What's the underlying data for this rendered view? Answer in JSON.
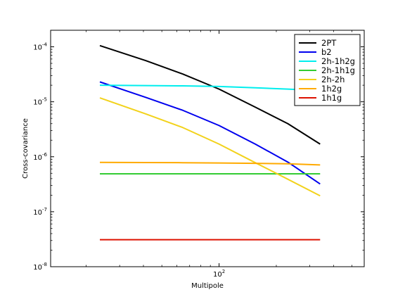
{
  "chart_data": {
    "type": "line",
    "title": "",
    "xlabel": "Multipole",
    "ylabel": "Cross-covariance",
    "xscale": "log",
    "yscale": "log",
    "xlim": [
      13,
      580
    ],
    "ylim": [
      1e-08,
      0.0002
    ],
    "x_ticks": [
      {
        "value": 100,
        "base": "10",
        "exp": "2"
      }
    ],
    "y_ticks": [
      {
        "value": 1e-08,
        "base": "10",
        "exp": "-8"
      },
      {
        "value": 1e-07,
        "base": "10",
        "exp": "-7"
      },
      {
        "value": 1e-06,
        "base": "10",
        "exp": "-6"
      },
      {
        "value": 1e-05,
        "base": "10",
        "exp": "-5"
      },
      {
        "value": 0.0001,
        "base": "10",
        "exp": "-4"
      }
    ],
    "grid": false,
    "legend_position": "top-right",
    "x": [
      23.6,
      41.2,
      64.4,
      100,
      155,
      230,
      340
    ],
    "series": [
      {
        "name": "2PT",
        "color": "#000000",
        "values": [
          0.000105,
          5.6e-05,
          3.2e-05,
          1.7e-05,
          8e-06,
          4e-06,
          1.7e-06
        ]
      },
      {
        "name": "b2",
        "color": "#0000ee",
        "values": [
          2.3e-05,
          1.2e-05,
          7e-06,
          3.7e-06,
          1.7e-06,
          8e-07,
          3.2e-07
        ]
      },
      {
        "name": "2h-1h2g",
        "color": "#00eeee",
        "values": [
          2e-05,
          1.97e-05,
          1.95e-05,
          1.9e-05,
          1.8e-05,
          1.7e-05,
          1.6e-05
        ]
      },
      {
        "name": "2h-1h1g",
        "color": "#33cc33",
        "values": [
          4.9e-07,
          4.9e-07,
          4.9e-07,
          4.9e-07,
          4.9e-07,
          4.9e-07,
          4.9e-07
        ]
      },
      {
        "name": "2h-2h",
        "color": "#f2d21b",
        "values": [
          1.18e-05,
          6e-06,
          3.4e-06,
          1.7e-06,
          7.8e-07,
          3.9e-07,
          1.95e-07
        ]
      },
      {
        "name": "1h2g",
        "color": "#ffaa00",
        "values": [
          7.9e-07,
          7.85e-07,
          7.8e-07,
          7.7e-07,
          7.6e-07,
          7.45e-07,
          7.1e-07
        ]
      },
      {
        "name": "1h1g",
        "color": "#dd1100",
        "values": [
          3.1e-08,
          3.1e-08,
          3.1e-08,
          3.1e-08,
          3.1e-08,
          3.1e-08,
          3.1e-08
        ]
      }
    ]
  }
}
